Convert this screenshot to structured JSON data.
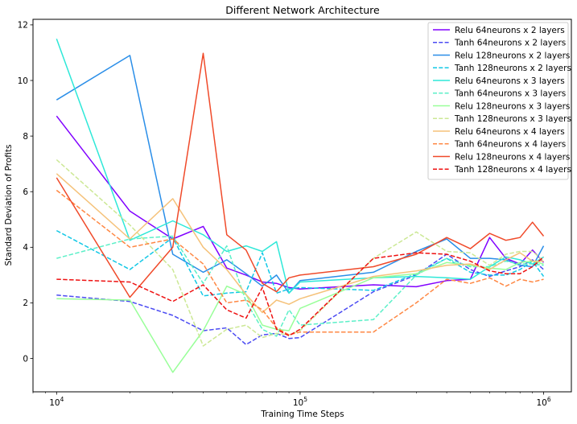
{
  "chart_data": {
    "type": "line",
    "title": "Different Network Architecture",
    "xlabel": "Training Time Steps",
    "ylabel": "Standard Deviation of Profits",
    "xscale": "log",
    "xlim": [
      8000,
      1300000
    ],
    "ylim": [
      -1.2,
      12.2
    ],
    "xticks": [
      {
        "value": 10000,
        "base": "10",
        "exp": "4"
      },
      {
        "value": 100000,
        "base": "10",
        "exp": "5"
      },
      {
        "value": 1000000,
        "base": "10",
        "exp": "6"
      }
    ],
    "yticks": [
      0,
      2,
      4,
      6,
      8,
      10,
      12
    ],
    "grid": false,
    "legend_position": "top-right",
    "x": [
      10000,
      20000,
      30000,
      40000,
      50000,
      60000,
      70000,
      80000,
      90000,
      100000,
      200000,
      300000,
      400000,
      500000,
      600000,
      700000,
      800000,
      900000,
      1000000
    ],
    "series": [
      {
        "name": "Relu 64neurons x 2 layers",
        "color": "#8000ff",
        "dash": "solid",
        "values": [
          8.72,
          5.3,
          4.3,
          4.75,
          3.25,
          3.0,
          2.75,
          2.7,
          2.55,
          2.5,
          2.65,
          2.58,
          2.8,
          2.85,
          4.35,
          3.6,
          3.4,
          3.9,
          3.45
        ]
      },
      {
        "name": "Tanh 64neurons x 2 layers",
        "color": "#4b4bf3",
        "dash": "dashed",
        "values": [
          2.28,
          2.05,
          1.55,
          1.0,
          1.1,
          0.5,
          0.85,
          0.9,
          0.72,
          0.75,
          2.4,
          3.0,
          3.75,
          3.2,
          2.95,
          3.15,
          3.3,
          3.55,
          3.2
        ]
      },
      {
        "name": "Relu 128neurons x 2 layers",
        "color": "#2a8ee8",
        "dash": "solid",
        "values": [
          9.3,
          10.9,
          3.75,
          3.1,
          3.55,
          3.05,
          2.6,
          3.0,
          2.35,
          2.8,
          3.1,
          3.85,
          4.3,
          3.6,
          3.6,
          3.55,
          3.35,
          3.3,
          4.05
        ]
      },
      {
        "name": "Tanh 128neurons x 2 layers",
        "color": "#12c8e6",
        "dash": "dashed",
        "values": [
          4.6,
          3.2,
          4.35,
          2.25,
          2.35,
          2.4,
          3.8,
          2.35,
          2.5,
          2.55,
          2.45,
          3.05,
          3.6,
          3.1,
          3.0,
          3.0,
          3.2,
          3.5,
          2.95
        ]
      },
      {
        "name": "Relu 64neurons x 3 layers",
        "color": "#2ee8d8",
        "dash": "solid",
        "values": [
          11.5,
          4.25,
          4.95,
          4.45,
          3.85,
          4.05,
          3.85,
          4.2,
          2.35,
          2.75,
          2.9,
          2.95,
          2.9,
          2.85,
          3.3,
          3.65,
          3.55,
          3.4,
          3.65
        ]
      },
      {
        "name": "Tanh 64neurons x 3 layers",
        "color": "#5cf0c8",
        "dash": "dashed",
        "values": [
          3.6,
          4.3,
          4.4,
          2.7,
          4.05,
          2.05,
          1.05,
          0.8,
          1.75,
          1.2,
          1.4,
          3.0,
          3.6,
          3.3,
          3.3,
          3.5,
          3.4,
          3.4,
          3.35
        ]
      },
      {
        "name": "Relu 128neurons x 3 layers",
        "color": "#99ff99",
        "dash": "solid",
        "values": [
          2.15,
          2.1,
          -0.5,
          1.0,
          2.6,
          2.3,
          1.2,
          1.05,
          1.0,
          1.8,
          2.9,
          3.05,
          3.45,
          3.35,
          3.25,
          3.2,
          3.45,
          3.5,
          3.4
        ]
      },
      {
        "name": "Tanh 128neurons x 3 layers",
        "color": "#cce895",
        "dash": "dashed",
        "values": [
          7.15,
          4.8,
          3.2,
          0.45,
          1.05,
          1.2,
          0.75,
          0.9,
          0.85,
          1.0,
          3.6,
          4.55,
          3.85,
          3.8,
          3.35,
          3.75,
          3.85,
          3.85,
          3.5
        ]
      },
      {
        "name": "Relu 64neurons x 4 layers",
        "color": "#f5c27a",
        "dash": "solid",
        "values": [
          6.65,
          4.3,
          5.75,
          4.0,
          3.2,
          2.3,
          1.65,
          2.1,
          1.95,
          2.15,
          2.95,
          3.15,
          3.35,
          3.4,
          3.2,
          3.55,
          3.8,
          3.5,
          3.5
        ]
      },
      {
        "name": "Tanh 64neurons x 4 layers",
        "color": "#ff8844",
        "dash": "dashed",
        "values": [
          6.05,
          4.0,
          4.3,
          3.4,
          2.0,
          2.1,
          1.75,
          1.1,
          0.85,
          0.95,
          0.95,
          2.0,
          2.85,
          2.7,
          2.9,
          2.6,
          2.85,
          2.75,
          2.85
        ]
      },
      {
        "name": "Relu 128neurons x 4 layers",
        "color": "#f04a2a",
        "dash": "solid",
        "values": [
          6.5,
          2.2,
          4.0,
          10.98,
          4.45,
          3.9,
          2.7,
          2.4,
          2.9,
          3.0,
          3.3,
          3.75,
          4.35,
          3.95,
          4.5,
          4.25,
          4.35,
          4.9,
          4.4
        ]
      },
      {
        "name": "Tanh 128neurons x 4 layers",
        "color": "#ee1111",
        "dash": "dashed",
        "values": [
          2.85,
          2.75,
          2.05,
          2.65,
          1.75,
          1.45,
          2.55,
          1.05,
          0.82,
          1.05,
          3.6,
          3.8,
          3.75,
          3.5,
          3.15,
          3.05,
          3.05,
          3.3,
          3.65
        ]
      }
    ]
  }
}
